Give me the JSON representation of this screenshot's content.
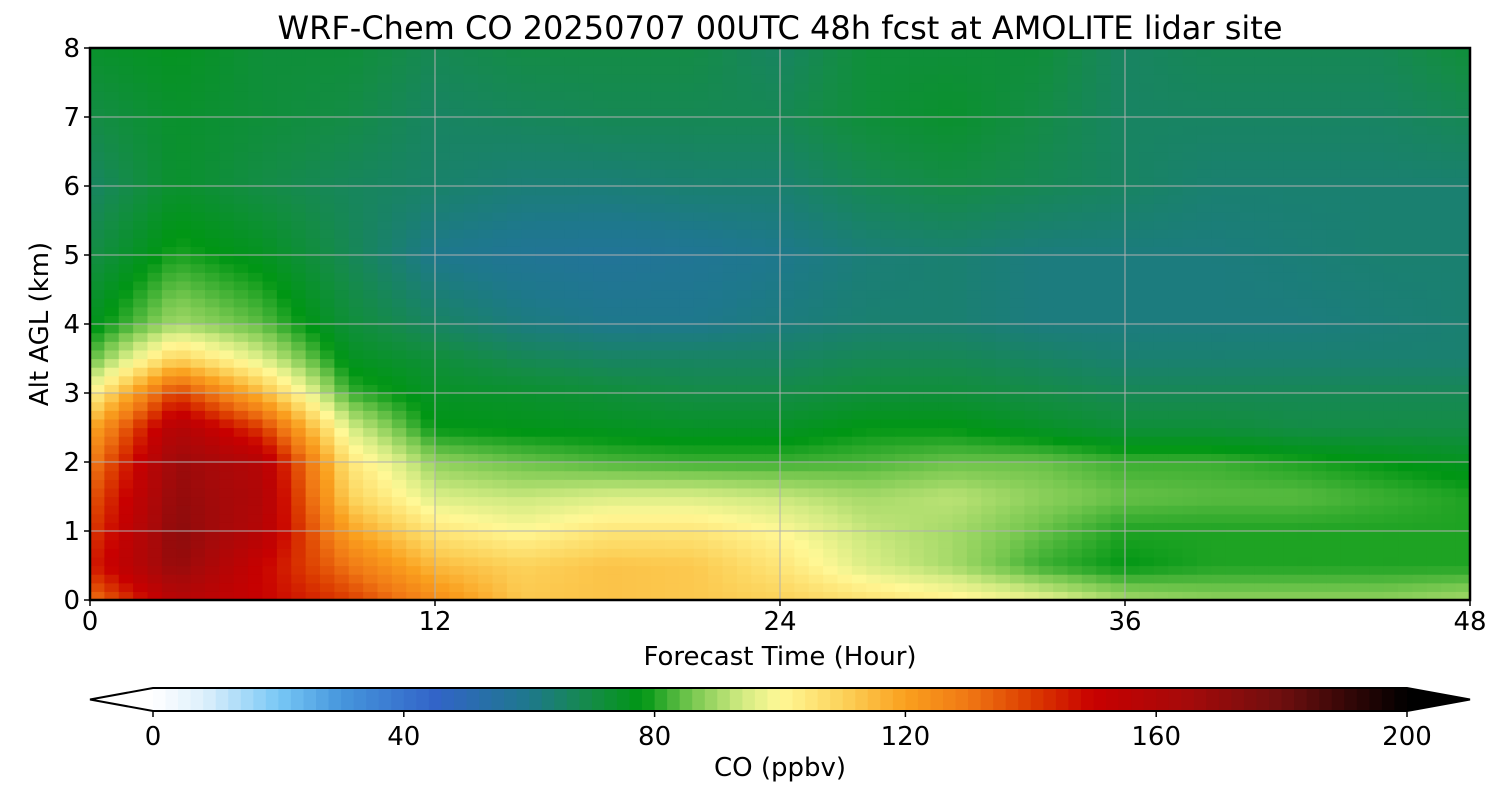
{
  "chart_data": {
    "type": "heatmap",
    "title": "WRF-Chem CO  20250707 00UTC 48h fcst at AMOLITE lidar site",
    "xlabel": "Forecast Time (Hour)",
    "ylabel": "Alt AGL (km)",
    "xlim": [
      0,
      48
    ],
    "ylim": [
      0,
      8
    ],
    "x_ticks": [
      0,
      12,
      24,
      36,
      48
    ],
    "y_ticks": [
      0,
      1,
      2,
      3,
      4,
      5,
      6,
      7,
      8
    ],
    "grid": true,
    "colorbar": {
      "label": "CO  (ppbv)",
      "range": [
        0,
        200
      ],
      "ticks": [
        0,
        40,
        80,
        120,
        160,
        200
      ],
      "extend": "both",
      "orientation": "horizontal"
    },
    "x": [
      0,
      3,
      6,
      9,
      12,
      15,
      18,
      21,
      24,
      27,
      30,
      33,
      36,
      39,
      42,
      45,
      48
    ],
    "y": [
      0,
      0.5,
      1,
      1.5,
      2,
      2.5,
      3,
      3.5,
      4,
      5,
      6,
      7,
      8
    ],
    "values": [
      [
        130,
        158,
        150,
        140,
        125,
        112,
        113,
        112,
        110,
        106,
        102,
        97,
        90,
        88,
        88,
        88,
        90
      ],
      [
        145,
        170,
        150,
        130,
        115,
        110,
        113,
        112,
        105,
        95,
        90,
        82,
        78,
        80,
        80,
        80,
        80
      ],
      [
        140,
        172,
        158,
        120,
        105,
        100,
        105,
        105,
        100,
        93,
        90,
        85,
        80,
        80,
        80,
        80,
        80
      ],
      [
        135,
        170,
        160,
        110,
        95,
        93,
        95,
        95,
        93,
        90,
        92,
        88,
        85,
        84,
        84,
        82,
        80
      ],
      [
        128,
        168,
        158,
        105,
        88,
        85,
        83,
        82,
        82,
        83,
        85,
        85,
        82,
        82,
        80,
        78,
        76
      ],
      [
        118,
        160,
        140,
        95,
        78,
        77,
        76,
        75,
        75,
        78,
        78,
        75,
        72,
        72,
        70,
        70,
        70
      ],
      [
        100,
        140,
        115,
        82,
        75,
        74,
        72,
        70,
        70,
        72,
        72,
        70,
        68,
        68,
        68,
        68,
        68
      ],
      [
        84,
        110,
        95,
        76,
        72,
        68,
        66,
        66,
        66,
        68,
        68,
        66,
        64,
        64,
        64,
        64,
        64
      ],
      [
        76,
        90,
        84,
        72,
        66,
        62,
        60,
        60,
        62,
        64,
        64,
        62,
        62,
        62,
        62,
        63,
        64
      ],
      [
        70,
        80,
        76,
        68,
        60,
        58,
        57,
        58,
        60,
        63,
        64,
        62,
        62,
        62,
        63,
        64,
        64
      ],
      [
        66,
        74,
        70,
        67,
        65,
        63,
        63,
        64,
        64,
        68,
        70,
        68,
        66,
        64,
        64,
        64,
        64
      ],
      [
        70,
        74,
        72,
        70,
        66,
        67,
        68,
        68,
        68,
        72,
        74,
        70,
        66,
        66,
        66,
        66,
        68
      ],
      [
        74,
        76,
        72,
        72,
        68,
        70,
        70,
        70,
        66,
        72,
        72,
        72,
        66,
        68,
        68,
        68,
        72
      ]
    ]
  }
}
